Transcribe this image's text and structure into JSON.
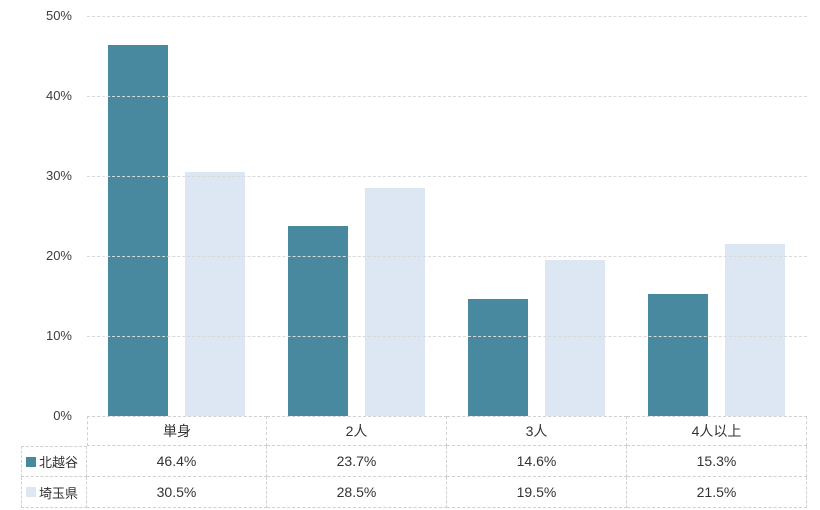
{
  "chart_data": {
    "type": "bar",
    "title": "",
    "categories": [
      "単身",
      "2人",
      "3人",
      "4人以上"
    ],
    "series": [
      {
        "id": "kitakoshigaya",
        "name": "北越谷",
        "color": "#48899F",
        "values": [
          46.4,
          23.7,
          14.6,
          15.3
        ]
      },
      {
        "id": "saitama",
        "name": "埼玉県",
        "color": "#DCE7F3",
        "values": [
          30.5,
          28.5,
          19.5,
          21.5
        ]
      }
    ],
    "y_ticks": [
      "50%",
      "40%",
      "30%",
      "20%",
      "10%",
      "0%"
    ],
    "ylim": [
      0,
      50
    ],
    "grid": true,
    "gridline_color": "#D9D9D9",
    "table_border_color": "#D0D0D0",
    "axis_text_color": "#3D3D3D",
    "value_suffix": "%",
    "legend_position": "table-left",
    "xlabel": "",
    "ylabel": ""
  }
}
